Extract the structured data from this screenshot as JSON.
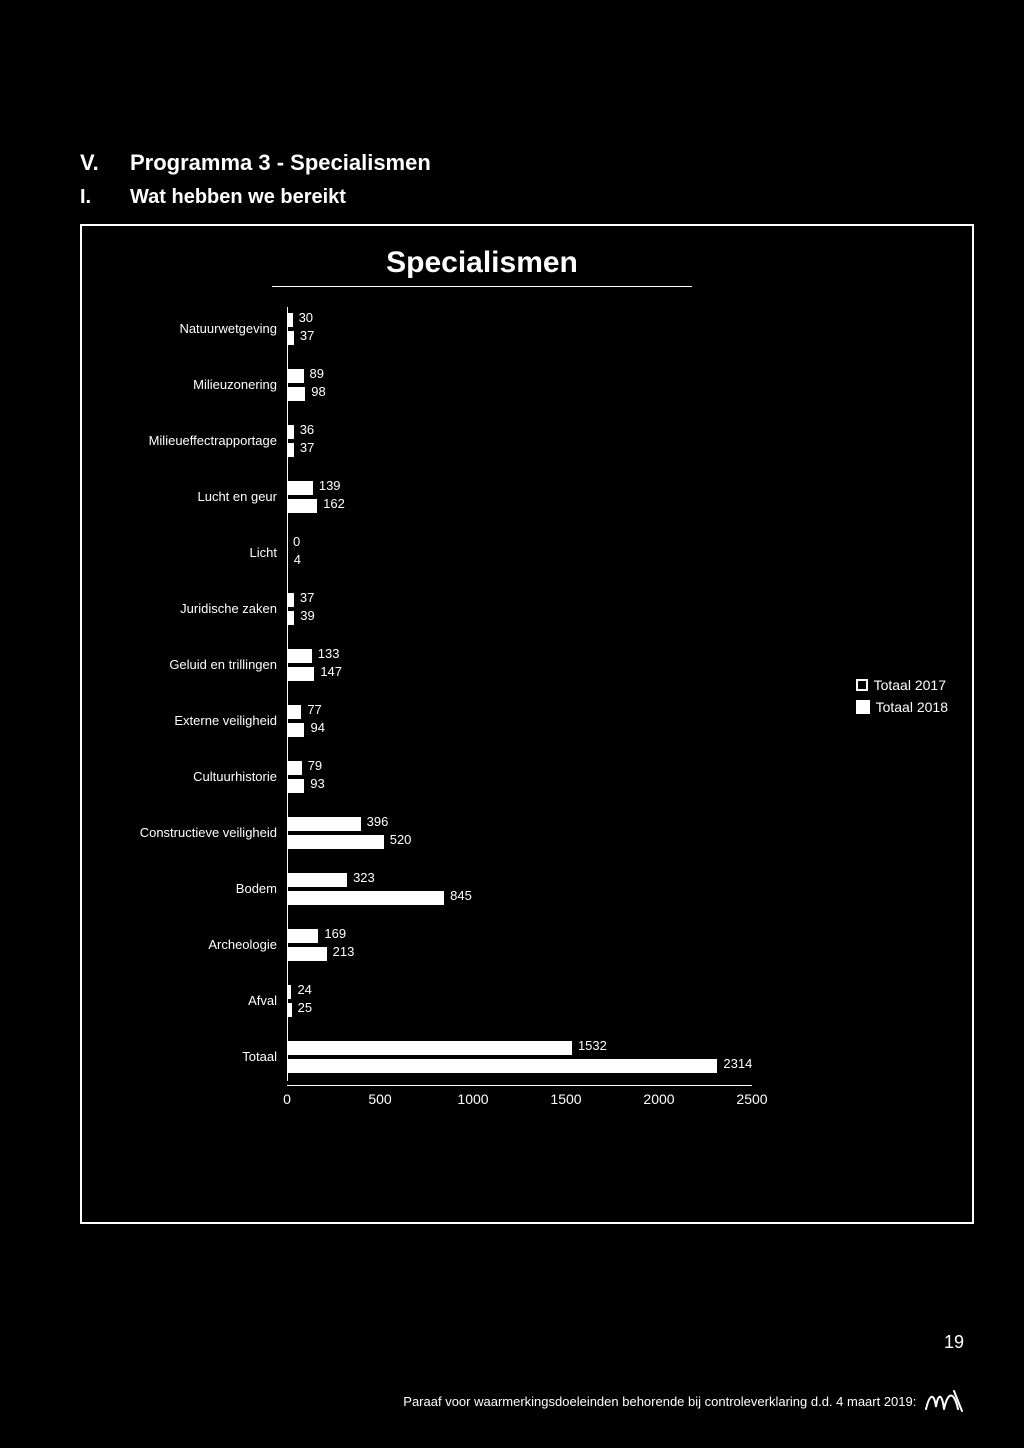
{
  "heading": {
    "num": "V.",
    "text": "Programma 3 - Specialismen"
  },
  "subheading": {
    "num": "I.",
    "text": "Wat hebben we bereikt"
  },
  "chart": {
    "title": "Specialismen",
    "xmax": 2500,
    "categories": [
      {
        "label": "Natuurwetgeving",
        "v2017": 30,
        "v2018": 37
      },
      {
        "label": "Milieuzonering",
        "v2017": 89,
        "v2018": 98
      },
      {
        "label": "Milieueffectrapportage",
        "v2017": 36,
        "v2018": 37
      },
      {
        "label": "Lucht en geur",
        "v2017": 139,
        "v2018": 162
      },
      {
        "label": "Licht",
        "v2017": 0,
        "v2018": 4
      },
      {
        "label": "Juridische zaken",
        "v2017": 37,
        "v2018": 39
      },
      {
        "label": "Geluid en trillingen",
        "v2017": 133,
        "v2018": 147
      },
      {
        "label": "Externe veiligheid",
        "v2017": 77,
        "v2018": 94
      },
      {
        "label": "Cultuurhistorie",
        "v2017": 79,
        "v2018": 93
      },
      {
        "label": "Constructieve veiligheid",
        "v2017": 396,
        "v2018": 520
      },
      {
        "label": "Bodem",
        "v2017": 323,
        "v2018": 845
      },
      {
        "label": "Archeologie",
        "v2017": 169,
        "v2018": 213
      },
      {
        "label": "Afval",
        "v2017": 24,
        "v2018": 25
      },
      {
        "label": "Totaal",
        "v2017": 1532,
        "v2018": 2314
      }
    ],
    "xticks": [
      0,
      500,
      1000,
      1500,
      2000,
      2500
    ],
    "legend": {
      "s2017": "Totaal 2017",
      "s2018": "Totaal 2018"
    }
  },
  "page_number": "19",
  "footer": "Paraaf voor waarmerkingsdoeleinden behorende bij controleverklaring d.d. 4 maart 2019:"
}
